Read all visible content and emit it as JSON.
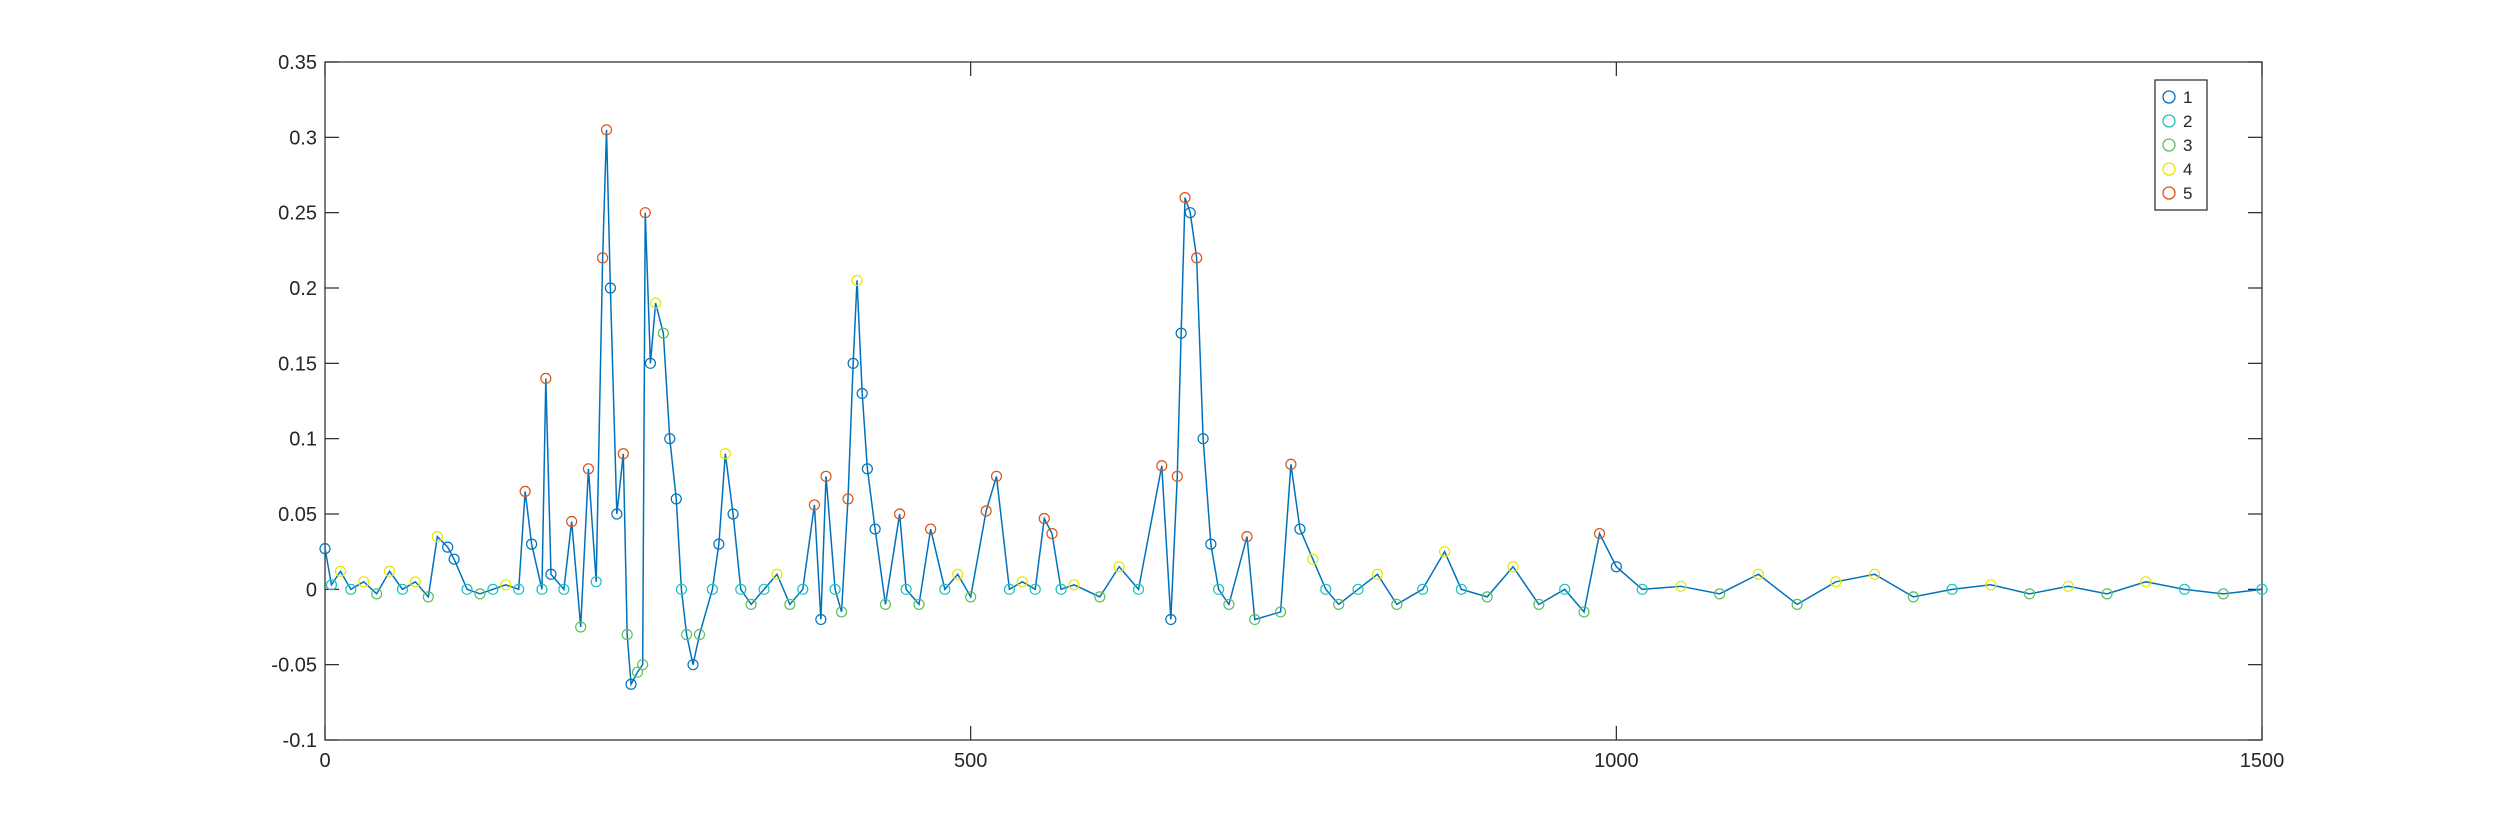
{
  "chart_data": {
    "type": "line",
    "x": [
      0,
      5,
      12,
      20,
      30,
      40,
      50,
      60,
      70,
      80,
      87,
      95,
      100,
      110,
      120,
      130,
      140,
      150,
      155,
      160,
      168,
      171,
      175,
      185,
      191,
      198,
      204,
      210,
      215,
      218,
      221,
      226,
      231,
      234,
      237,
      242,
      246,
      248,
      252,
      256,
      262,
      267,
      272,
      276,
      280,
      285,
      290,
      300,
      305,
      310,
      316,
      322,
      330,
      340,
      350,
      360,
      370,
      379,
      384,
      388,
      395,
      400,
      405,
      409,
      412,
      416,
      420,
      426,
      434,
      445,
      450,
      460,
      469,
      480,
      490,
      500,
      512,
      520,
      530,
      540,
      550,
      557,
      563,
      570,
      580,
      600,
      615,
      630,
      648,
      655,
      660,
      663,
      666,
      670,
      675,
      680,
      686,
      692,
      700,
      714,
      720,
      740,
      748,
      755,
      765,
      775,
      785,
      800,
      815,
      830,
      850,
      867,
      880,
      900,
      920,
      940,
      960,
      975,
      987,
      1000,
      1020,
      1050,
      1080,
      1110,
      1140,
      1170,
      1200,
      1230,
      1260,
      1290,
      1320,
      1350,
      1380,
      1410,
      1440,
      1470,
      1500
    ],
    "values": [
      0.027,
      0.003,
      0.012,
      0.0,
      0.005,
      -0.003,
      0.012,
      0.0,
      0.005,
      -0.005,
      0.035,
      0.028,
      0.02,
      0.0,
      -0.003,
      0.0,
      0.003,
      0.0,
      0.065,
      0.03,
      0.0,
      0.14,
      0.01,
      0.0,
      0.045,
      -0.025,
      0.08,
      0.005,
      0.22,
      0.305,
      0.2,
      0.05,
      0.09,
      -0.03,
      -0.063,
      -0.055,
      -0.05,
      0.25,
      0.15,
      0.19,
      0.17,
      0.1,
      0.06,
      0.0,
      -0.03,
      -0.05,
      -0.03,
      0.0,
      0.03,
      0.09,
      0.05,
      0.0,
      -0.01,
      0.0,
      0.01,
      -0.01,
      0.0,
      0.056,
      -0.02,
      0.075,
      0.0,
      -0.015,
      0.06,
      0.15,
      0.205,
      0.13,
      0.08,
      0.04,
      -0.01,
      0.05,
      0.0,
      -0.01,
      0.04,
      0.0,
      0.01,
      -0.005,
      0.052,
      0.075,
      0.0,
      0.005,
      0.0,
      0.047,
      0.037,
      0.0,
      0.003,
      -0.005,
      0.015,
      0.0,
      0.082,
      -0.02,
      0.075,
      0.17,
      0.26,
      0.25,
      0.22,
      0.1,
      0.03,
      0.0,
      -0.01,
      0.035,
      -0.02,
      -0.015,
      0.083,
      0.04,
      0.02,
      0.0,
      -0.01,
      0.0,
      0.01,
      -0.01,
      0.0,
      0.025,
      0.0,
      -0.005,
      0.015,
      -0.01,
      0.0,
      -0.015,
      0.037,
      0.015,
      0.0,
      0.002,
      -0.003,
      0.01,
      -0.01,
      0.005,
      0.01,
      -0.005,
      0.0,
      0.003,
      -0.003,
      0.002,
      -0.003,
      0.005,
      0.0,
      -0.003,
      0.0
    ],
    "marker_class": [
      0,
      1,
      3,
      1,
      3,
      2,
      3,
      1,
      3,
      2,
      3,
      0,
      0,
      1,
      2,
      1,
      3,
      1,
      4,
      0,
      1,
      4,
      0,
      1,
      4,
      2,
      4,
      1,
      4,
      4,
      0,
      0,
      4,
      2,
      0,
      2,
      2,
      4,
      0,
      3,
      2,
      0,
      0,
      1,
      2,
      0,
      2,
      1,
      0,
      3,
      0,
      1,
      2,
      1,
      3,
      2,
      1,
      4,
      0,
      4,
      1,
      2,
      4,
      0,
      3,
      0,
      0,
      0,
      2,
      4,
      1,
      2,
      4,
      1,
      3,
      2,
      4,
      4,
      1,
      3,
      1,
      4,
      4,
      1,
      3,
      2,
      3,
      1,
      4,
      0,
      4,
      0,
      4,
      0,
      4,
      0,
      0,
      1,
      2,
      4,
      2,
      2,
      4,
      0,
      3,
      1,
      2,
      1,
      3,
      2,
      1,
      3,
      1,
      2,
      3,
      2,
      1,
      2,
      4,
      0,
      1,
      3,
      2,
      3,
      2,
      3,
      3,
      2,
      1,
      3,
      2,
      3,
      2,
      3,
      1,
      2,
      1
    ],
    "color": "#0072bd",
    "legend": [
      {
        "name": "1",
        "color": "#0072bd"
      },
      {
        "name": "2",
        "color": "#1fbfbf"
      },
      {
        "name": "3",
        "color": "#5bbf5b"
      },
      {
        "name": "4",
        "color": "#e6e600"
      },
      {
        "name": "5",
        "color": "#d95319"
      }
    ],
    "legend_position": "upper right",
    "xlim": [
      0,
      1500
    ],
    "xticks": [
      0,
      500,
      1000,
      1500
    ],
    "ylim": [
      -0.1,
      0.35
    ],
    "yticks": [
      -0.1,
      -0.05,
      0,
      0.05,
      0.1,
      0.15,
      0.2,
      0.25,
      0.3,
      0.35
    ]
  }
}
